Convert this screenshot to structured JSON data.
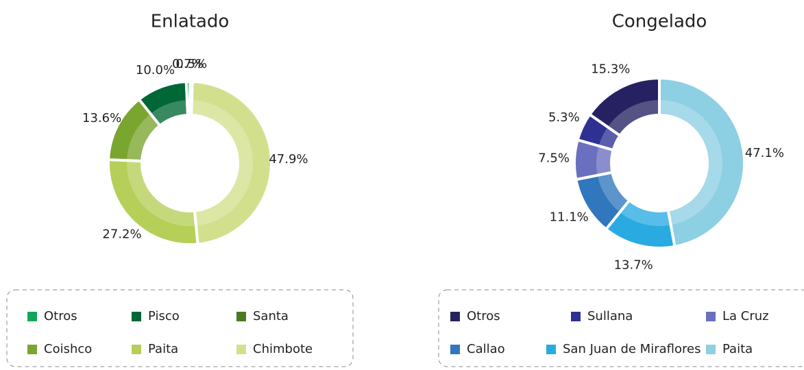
{
  "chart_data": [
    {
      "type": "donut",
      "title": "Enlatado",
      "categories": [
        "Otros",
        "Pisco",
        "Santa",
        "Coishco",
        "Paita",
        "Chimbote"
      ],
      "values": [
        0.7,
        10.0,
        0.5,
        13.6,
        27.2,
        47.9
      ],
      "value_labels": [
        "0.7%",
        "10.0%",
        "0.5%",
        "13.6%",
        "27.2%",
        "47.9%"
      ],
      "colors": [
        "#13a65a",
        "#006837",
        "#4a7a22",
        "#7aa52e",
        "#b5cf58",
        "#d2e08e"
      ]
    },
    {
      "type": "donut",
      "title": "Congelado",
      "categories": [
        "Otros",
        "Sullana",
        "La Cruz",
        "Callao",
        "San Juan de Miraflores",
        "Paita"
      ],
      "values": [
        15.3,
        5.3,
        7.5,
        11.1,
        13.7,
        47.1
      ],
      "value_labels": [
        "15.3%",
        "5.3%",
        "7.5%",
        "11.1%",
        "13.7%",
        "47.1%"
      ],
      "colors": [
        "#262262",
        "#2e3192",
        "#6b6fbf",
        "#3077bd",
        "#29abe2",
        "#8dcfe3"
      ]
    }
  ]
}
